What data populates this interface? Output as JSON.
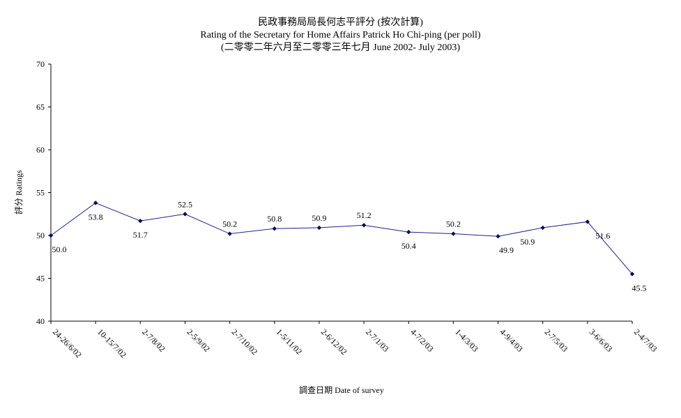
{
  "chart_data": {
    "type": "line",
    "title": "民政事務局局長何志平評分 (按次計算)",
    "subtitle": "Rating of the Secretary for Home Affairs Patrick Ho Chi-ping (per poll)",
    "subtitle2": "(二零零二年六月至二零零三年七月 June 2002- July 2003)",
    "xlabel": "調查日期 Date of survey",
    "ylabel": "評分 Ratings",
    "ylim": [
      40,
      70
    ],
    "yticks": [
      "40",
      "45",
      "50",
      "55",
      "60",
      "65",
      "70"
    ],
    "categories": [
      "24-26/6/02",
      "10-15/7/02",
      "2-7/8/02",
      "2-5/9/02",
      "2-7/10/02",
      "1-5/11/02",
      "2-6/12/02",
      "2-7/1/03",
      "4-7/2/03",
      "1-4/3/03",
      "4-9/4/03",
      "2-7/5/03",
      "3-6/6/03",
      "2-4/7/03"
    ],
    "values": [
      50.0,
      53.8,
      51.7,
      52.5,
      50.2,
      50.8,
      50.9,
      51.2,
      50.4,
      50.2,
      49.9,
      50.9,
      51.6,
      45.5
    ],
    "data_labels": [
      "50.0",
      "53.8",
      "51.7",
      "52.5",
      "50.2",
      "50.8",
      "50.9",
      "51.2",
      "50.4",
      "50.2",
      "49.9",
      "50.9",
      "51.6",
      "45.5"
    ],
    "grid": false,
    "legend": "none",
    "line_color": "#1f1f8f",
    "marker_color": "#0a0a5e"
  }
}
